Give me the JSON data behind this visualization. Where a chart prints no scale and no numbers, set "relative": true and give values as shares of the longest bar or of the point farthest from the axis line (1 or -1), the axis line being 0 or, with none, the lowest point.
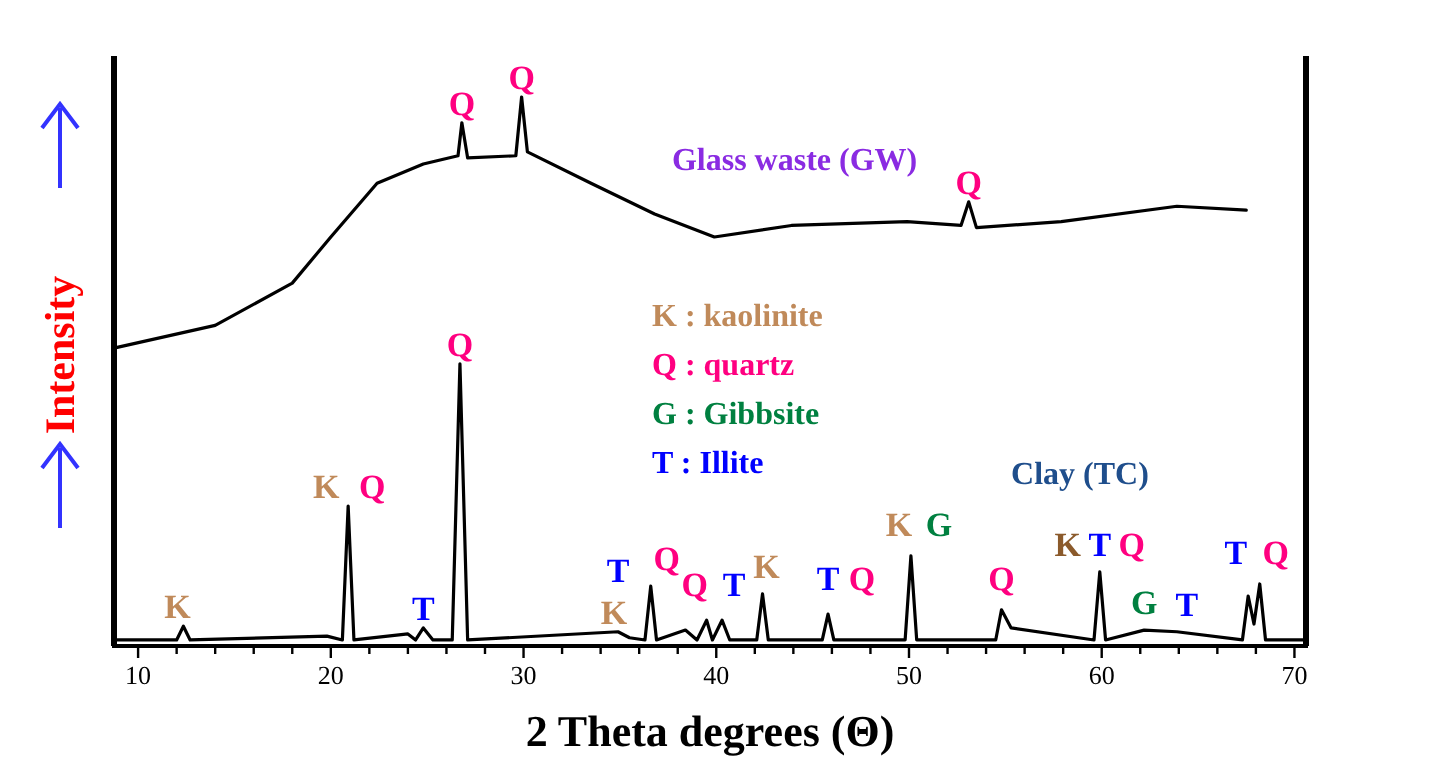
{
  "chart_data": {
    "type": "line",
    "relative": true,
    "xlabel": "2 Theta degrees (Θ)",
    "ylabel": "Intensity",
    "xlim": [
      8.75,
      70.6
    ],
    "xticks": [
      10,
      {
        "value": 12,
        "label": null
      },
      {
        "value": 14,
        "label": null
      },
      {
        "value": 16,
        "label": null
      },
      {
        "value": 18,
        "label": null
      },
      20,
      {
        "value": 22,
        "label": null
      },
      {
        "value": 24,
        "label": null
      },
      {
        "value": 26,
        "label": null
      },
      {
        "value": 28,
        "label": null
      },
      30,
      {
        "value": 32,
        "label": null
      },
      {
        "value": 34,
        "label": null
      },
      {
        "value": 36,
        "label": null
      },
      {
        "value": 38,
        "label": null
      },
      40,
      {
        "value": 42,
        "label": null
      },
      {
        "value": 44,
        "label": null
      },
      {
        "value": 46,
        "label": null
      },
      {
        "value": 48,
        "label": null
      },
      50,
      {
        "value": 52,
        "label": null
      },
      {
        "value": 54,
        "label": null
      },
      {
        "value": 56,
        "label": null
      },
      {
        "value": 58,
        "label": null
      },
      60,
      {
        "value": 62,
        "label": null
      },
      {
        "value": 64,
        "label": null
      },
      {
        "value": 66,
        "label": null
      },
      {
        "value": 68,
        "label": null
      },
      70
    ],
    "series": [
      {
        "name": "Glass waste (GW)",
        "color": "#000000",
        "x": [
          8.8,
          14.0,
          18.0,
          20.0,
          22.4,
          24.8,
          26.6,
          26.8,
          27.1,
          29.6,
          29.9,
          30.2,
          33.5,
          36.8,
          39.9,
          43.9,
          49.9,
          52.7,
          53.1,
          53.5,
          57.9,
          63.9,
          67.5
        ],
        "values": [
          0.543,
          0.584,
          0.661,
          0.745,
          0.843,
          0.878,
          0.893,
          0.953,
          0.889,
          0.893,
          1,
          0.9,
          0.843,
          0.787,
          0.745,
          0.766,
          0.773,
          0.766,
          0.809,
          0.762,
          0.773,
          0.801,
          0.794
        ]
      },
      {
        "name": "Clay (TC)",
        "color": "#000000",
        "x": [
          8.8,
          12.0,
          12.35,
          12.7,
          19.8,
          20.6,
          20.9,
          21.2,
          24.0,
          24.4,
          24.8,
          25.3,
          26.3,
          26.7,
          27.1,
          34.9,
          35.5,
          36.3,
          36.6,
          36.9,
          38.4,
          39.0,
          39.5,
          39.8,
          40.3,
          40.7,
          42.1,
          42.4,
          42.7,
          45.5,
          45.8,
          46.1,
          49.8,
          50.1,
          50.4,
          54.5,
          54.8,
          55.3,
          59.6,
          59.9,
          60.2,
          62.2,
          63.9,
          67.3,
          67.6,
          67.9,
          68.2,
          68.5,
          70.5
        ],
        "values": [
          0.011,
          0.011,
          0.036,
          0.011,
          0.018,
          0.011,
          0.255,
          0.011,
          0.022,
          0.011,
          0.033,
          0.011,
          0.011,
          0.514,
          0.011,
          0.026,
          0.015,
          0.011,
          0.109,
          0.011,
          0.029,
          0.011,
          0.047,
          0.011,
          0.047,
          0.011,
          0.011,
          0.095,
          0.011,
          0.011,
          0.058,
          0.011,
          0.011,
          0.164,
          0.011,
          0.011,
          0.066,
          0.033,
          0.011,
          0.135,
          0.011,
          0.029,
          0.026,
          0.011,
          0.091,
          0.04,
          0.113,
          0.011,
          0.011
        ]
      }
    ],
    "annotations": [
      {
        "text": "Q",
        "x": 26.8,
        "y": 0.953
      },
      {
        "text": "Q",
        "x": 29.9,
        "y": 1
      },
      {
        "text": "Q",
        "x": 53.1,
        "y": 0.809
      },
      {
        "text": "K",
        "x": 12.35,
        "y": 0.036
      },
      {
        "text": "K",
        "x": 20.9,
        "y": 0.255
      },
      {
        "text": "Q",
        "x": 20.9,
        "y": 0.255
      },
      {
        "text": "T",
        "x": 24.8,
        "y": 0.033
      },
      {
        "text": "Q",
        "x": 26.7,
        "y": 0.514
      },
      {
        "text": "T",
        "x": 34.9,
        "y": 0.026
      },
      {
        "text": "K",
        "x": 34.9,
        "y": 0.026
      },
      {
        "text": "Q",
        "x": 36.6,
        "y": 0.109
      },
      {
        "text": "Q",
        "x": 39.5,
        "y": 0.047
      },
      {
        "text": "T",
        "x": 40.3,
        "y": 0.047
      },
      {
        "text": "K",
        "x": 42.4,
        "y": 0.095
      },
      {
        "text": "T",
        "x": 45.8,
        "y": 0.058
      },
      {
        "text": "Q",
        "x": 45.8,
        "y": 0.058
      },
      {
        "text": "K",
        "x": 50.1,
        "y": 0.164
      },
      {
        "text": "G",
        "x": 50.1,
        "y": 0.164
      },
      {
        "text": "Q",
        "x": 54.8,
        "y": 0.066
      },
      {
        "text": "K",
        "x": 59.9,
        "y": 0.135
      },
      {
        "text": "T",
        "x": 59.9,
        "y": 0.135
      },
      {
        "text": "Q",
        "x": 59.9,
        "y": 0.135
      },
      {
        "text": "G",
        "x": 62.2,
        "y": 0.029
      },
      {
        "text": "T",
        "x": 63.9,
        "y": 0.026
      },
      {
        "text": "T",
        "x": 68.2,
        "y": 0.113
      },
      {
        "text": "Q",
        "x": 68.2,
        "y": 0.113
      },
      "K : kaolinite",
      "Q : quartz",
      "G : Gibbsite",
      "T : Illite"
    ]
  }
}
